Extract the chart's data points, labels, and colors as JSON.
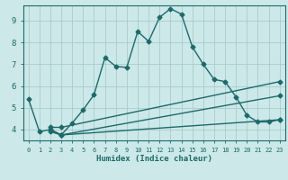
{
  "xlabel": "Humidex (Indice chaleur)",
  "bg_color": "#cce8e8",
  "grid_color": "#aacccc",
  "line_color": "#1a6b6b",
  "markersize": 2.5,
  "linewidth": 1.0,
  "xlim": [
    -0.5,
    23.5
  ],
  "ylim": [
    3.5,
    9.7
  ],
  "xticks": [
    0,
    1,
    2,
    3,
    4,
    5,
    6,
    7,
    8,
    9,
    10,
    11,
    12,
    13,
    14,
    15,
    16,
    17,
    18,
    19,
    20,
    21,
    22,
    23
  ],
  "yticks": [
    4,
    5,
    6,
    7,
    8,
    9
  ],
  "series": [
    {
      "x": [
        0,
        1,
        2,
        3,
        4,
        5,
        6,
        7,
        8,
        9,
        10,
        11,
        12,
        13,
        14,
        15,
        16,
        17,
        18,
        19,
        20,
        21,
        22,
        23
      ],
      "y": [
        5.4,
        3.9,
        4.0,
        3.75,
        4.3,
        4.9,
        5.6,
        7.3,
        6.9,
        6.85,
        8.5,
        8.05,
        9.15,
        9.55,
        9.3,
        7.8,
        7.0,
        6.3,
        6.2,
        5.5,
        4.65,
        4.35,
        4.35,
        4.45
      ]
    },
    {
      "x": [
        2,
        3,
        23
      ],
      "y": [
        4.1,
        4.1,
        6.2
      ]
    },
    {
      "x": [
        2,
        3,
        23
      ],
      "y": [
        4.0,
        3.75,
        5.55
      ]
    },
    {
      "x": [
        2,
        3,
        23
      ],
      "y": [
        3.9,
        3.75,
        4.45
      ]
    }
  ]
}
